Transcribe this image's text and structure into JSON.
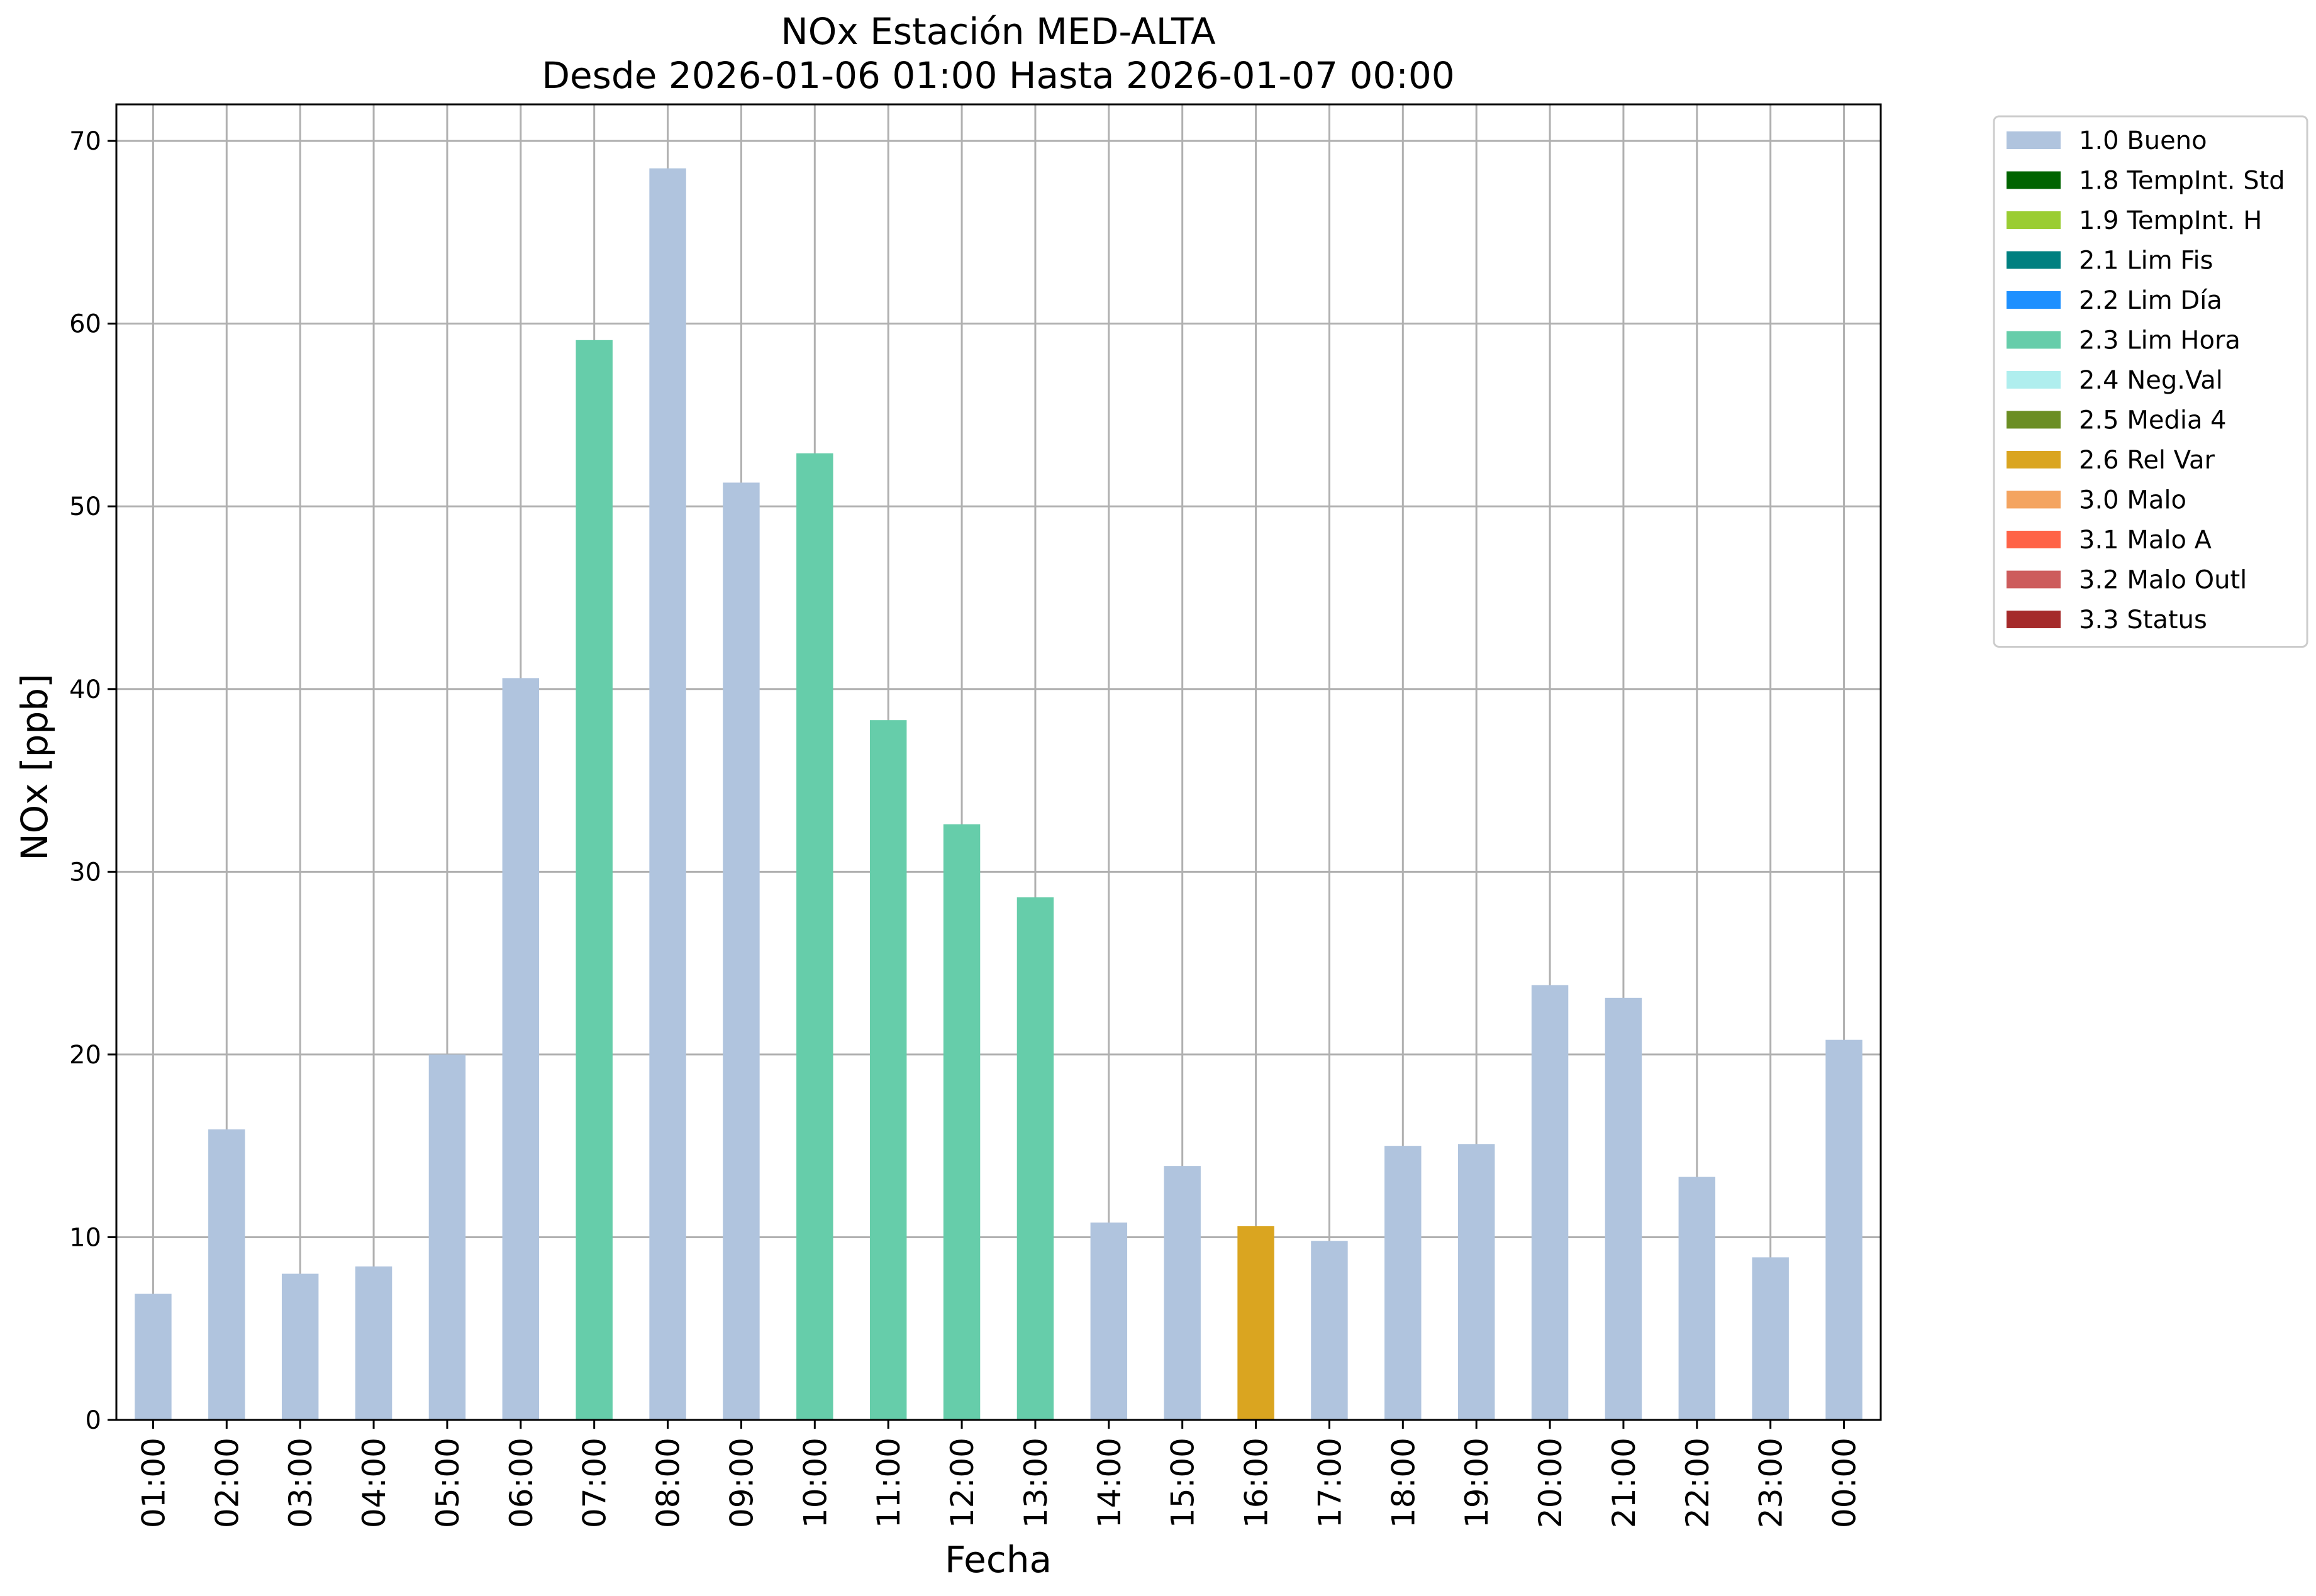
{
  "chart_data": {
    "type": "bar",
    "title": "NOx Estación MED-ALTA",
    "subtitle": "Desde 2026-01-06 01:00 Hasta 2026-01-07 00:00",
    "xlabel": "Fecha",
    "ylabel": "NOx [ppb]",
    "ylim": [
      0,
      72
    ],
    "yticks": [
      0,
      10,
      20,
      30,
      40,
      50,
      60,
      70
    ],
    "grid": true,
    "legend_position": "outside right, top",
    "categories": [
      "01:00",
      "02:00",
      "03:00",
      "04:00",
      "05:00",
      "06:00",
      "07:00",
      "08:00",
      "09:00",
      "10:00",
      "11:00",
      "12:00",
      "13:00",
      "14:00",
      "15:00",
      "16:00",
      "17:00",
      "18:00",
      "19:00",
      "20:00",
      "21:00",
      "22:00",
      "23:00",
      "00:00"
    ],
    "values": [
      6.9,
      15.9,
      8.0,
      8.4,
      20.0,
      40.6,
      59.1,
      68.5,
      51.3,
      52.9,
      38.3,
      32.6,
      28.6,
      10.8,
      13.9,
      10.6,
      9.8,
      15.0,
      15.1,
      23.8,
      23.1,
      13.3,
      8.9,
      20.8
    ],
    "flags": [
      "1.0 Bueno",
      "1.0 Bueno",
      "1.0 Bueno",
      "1.0 Bueno",
      "1.0 Bueno",
      "1.0 Bueno",
      "2.3 Lim Hora",
      "1.0 Bueno",
      "1.0 Bueno",
      "2.3 Lim Hora",
      "2.3 Lim Hora",
      "2.3 Lim Hora",
      "2.3 Lim Hora",
      "1.0 Bueno",
      "1.0 Bueno",
      "2.6 Rel Var",
      "1.0 Bueno",
      "1.0 Bueno",
      "1.0 Bueno",
      "1.0 Bueno",
      "1.0 Bueno",
      "1.0 Bueno",
      "1.0 Bueno",
      "1.0 Bueno"
    ],
    "legend": [
      {
        "label": "1.0 Bueno",
        "color": "#b0c4de"
      },
      {
        "label": "1.8 TempInt. Std",
        "color": "#006400"
      },
      {
        "label": "1.9 TempInt. H",
        "color": "#9acd32"
      },
      {
        "label": "2.1 Lim Fis",
        "color": "#008080"
      },
      {
        "label": "2.2 Lim Día",
        "color": "#1e90ff"
      },
      {
        "label": "2.3 Lim Hora",
        "color": "#66cdaa"
      },
      {
        "label": "2.4 Neg.Val",
        "color": "#afeeee"
      },
      {
        "label": "2.5 Media 4",
        "color": "#6b8e23"
      },
      {
        "label": "2.6 Rel Var",
        "color": "#daa520"
      },
      {
        "label": "3.0 Malo",
        "color": "#f4a460"
      },
      {
        "label": "3.1 Malo A",
        "color": "#ff6347"
      },
      {
        "label": "3.2 Malo Outl",
        "color": "#cd5c5c"
      },
      {
        "label": "3.3 Status",
        "color": "#a52a2a"
      }
    ]
  }
}
